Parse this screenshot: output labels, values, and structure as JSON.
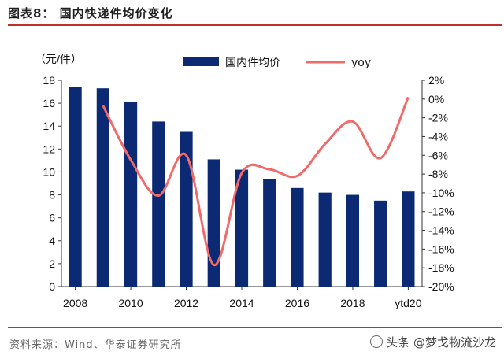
{
  "figure": {
    "title": "图表8：  国内快递件均价变化",
    "source": "资料来源：Wind、华泰证券研究所",
    "watermark": "头条 @梦戈物流沙龙"
  },
  "chart_data": {
    "type": "bar",
    "title": "",
    "left_unit_label": "（元/件）",
    "x_tick_labels": [
      "2008",
      "2010",
      "2012",
      "2014",
      "2016",
      "2018",
      "ytd20"
    ],
    "categories": [
      "2008",
      "2009",
      "2010",
      "2011",
      "2012",
      "2013",
      "2014",
      "2015",
      "2016",
      "2017",
      "2018",
      "2019",
      "ytd20"
    ],
    "series": [
      {
        "name": "国内件均价",
        "type": "bar",
        "axis": "left",
        "color": "#0b2a73",
        "values": [
          17.4,
          17.3,
          16.1,
          14.4,
          13.5,
          11.1,
          10.2,
          9.4,
          8.6,
          8.2,
          8.0,
          7.5,
          8.3
        ]
      },
      {
        "name": "yoy",
        "type": "line",
        "axis": "right",
        "color": "#f06a6a",
        "values": [
          null,
          -0.7,
          -6.5,
          -10.3,
          -6.0,
          -17.7,
          -7.9,
          -7.5,
          -8.2,
          -4.8,
          -2.4,
          -6.3,
          0.2
        ]
      }
    ],
    "y_left": {
      "min": 0,
      "max": 18,
      "step": 2,
      "ticks": [
        "0",
        "2",
        "4",
        "6",
        "8",
        "10",
        "12",
        "14",
        "16",
        "18"
      ]
    },
    "y_right": {
      "min": -20,
      "max": 2,
      "step": 2,
      "ticks": [
        "-20%",
        "-18%",
        "-16%",
        "-14%",
        "-12%",
        "-10%",
        "-8%",
        "-6%",
        "-4%",
        "-2%",
        "0%",
        "2%"
      ]
    },
    "grid": false,
    "legend_position": "top"
  }
}
